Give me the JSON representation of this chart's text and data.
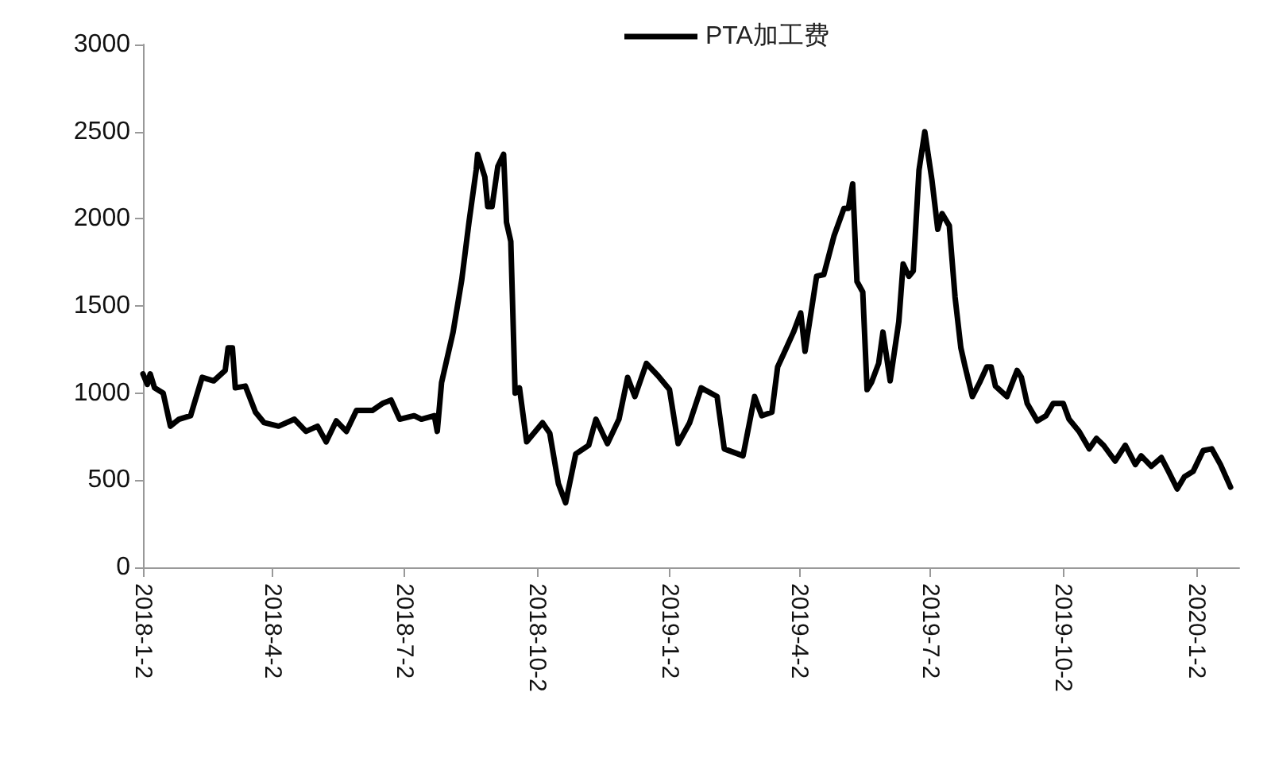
{
  "chart_data": {
    "type": "line",
    "legend": "top",
    "grid": false,
    "marker": "none",
    "line_style": "solid",
    "xlim": [
      "2018-01-02",
      "2020-02-01"
    ],
    "xticks": [
      {
        "value": "2018-01-02",
        "label": "2018-1-2"
      },
      {
        "value": "2018-04-02",
        "label": "2018-4-2"
      },
      {
        "value": "2018-07-02",
        "label": "2018-7-2"
      },
      {
        "value": "2018-10-02",
        "label": "2018-10-2"
      },
      {
        "value": "2019-01-02",
        "label": "2019-1-2"
      },
      {
        "value": "2019-04-02",
        "label": "2019-4-2"
      },
      {
        "value": "2019-07-02",
        "label": "2019-7-2"
      },
      {
        "value": "2019-10-02",
        "label": "2019-10-2"
      },
      {
        "value": "2020-01-02",
        "label": "2020-1-2"
      }
    ],
    "ylim": [
      0,
      3000
    ],
    "yticks": [
      0,
      500,
      1000,
      1500,
      2000,
      2500,
      3000
    ],
    "series": [
      {
        "name": "PTA加工费",
        "color": "#000000",
        "x": [
          "2018-01-02",
          "2018-01-05",
          "2018-01-07",
          "2018-01-10",
          "2018-01-16",
          "2018-01-21",
          "2018-01-27",
          "2018-02-04",
          "2018-02-12",
          "2018-02-20",
          "2018-02-28",
          "2018-03-02",
          "2018-03-05",
          "2018-03-07",
          "2018-03-14",
          "2018-03-21",
          "2018-03-27",
          "2018-04-06",
          "2018-04-17",
          "2018-04-25",
          "2018-05-03",
          "2018-05-09",
          "2018-05-16",
          "2018-05-23",
          "2018-05-30",
          "2018-06-10",
          "2018-06-17",
          "2018-06-23",
          "2018-06-29",
          "2018-07-09",
          "2018-07-14",
          "2018-07-23",
          "2018-07-25",
          "2018-07-28",
          "2018-08-05",
          "2018-08-11",
          "2018-08-16",
          "2018-08-21",
          "2018-08-22",
          "2018-08-27",
          "2018-08-29",
          "2018-09-01",
          "2018-09-05",
          "2018-09-09",
          "2018-09-11",
          "2018-09-14",
          "2018-09-17",
          "2018-09-20",
          "2018-09-25",
          "2018-10-06",
          "2018-10-11",
          "2018-10-17",
          "2018-10-22",
          "2018-10-29",
          "2018-11-07",
          "2018-11-12",
          "2018-11-20",
          "2018-11-28",
          "2018-12-04",
          "2018-12-09",
          "2018-12-17",
          "2018-12-25",
          "2019-01-02",
          "2019-01-08",
          "2019-01-16",
          "2019-01-24",
          "2019-02-04",
          "2019-02-09",
          "2019-02-22",
          "2019-03-02",
          "2019-03-07",
          "2019-03-14",
          "2019-03-18",
          "2019-03-23",
          "2019-03-29",
          "2019-04-03",
          "2019-04-06",
          "2019-04-14",
          "2019-04-19",
          "2019-04-26",
          "2019-05-03",
          "2019-05-06",
          "2019-05-09",
          "2019-05-12",
          "2019-05-16",
          "2019-05-19",
          "2019-05-22",
          "2019-05-27",
          "2019-05-30",
          "2019-06-04",
          "2019-06-10",
          "2019-06-13",
          "2019-06-17",
          "2019-06-20",
          "2019-06-24",
          "2019-06-28",
          "2019-07-03",
          "2019-07-07",
          "2019-07-10",
          "2019-07-15",
          "2019-07-19",
          "2019-07-23",
          "2019-07-26",
          "2019-07-31",
          "2019-08-05",
          "2019-08-10",
          "2019-08-13",
          "2019-08-16",
          "2019-08-24",
          "2019-08-31",
          "2019-09-03",
          "2019-09-07",
          "2019-09-14",
          "2019-09-20",
          "2019-09-25",
          "2019-10-02",
          "2019-10-06",
          "2019-10-13",
          "2019-10-20",
          "2019-10-25",
          "2019-10-30",
          "2019-11-07",
          "2019-11-14",
          "2019-11-21",
          "2019-11-25",
          "2019-12-02",
          "2019-12-09",
          "2019-12-14",
          "2019-12-20",
          "2019-12-25",
          "2019-12-31",
          "2020-01-07",
          "2020-01-13",
          "2020-01-19",
          "2020-01-26"
        ],
        "values": [
          1110,
          1050,
          1110,
          1030,
          1000,
          810,
          850,
          870,
          1090,
          1070,
          1130,
          1260,
          1260,
          1030,
          1040,
          890,
          830,
          810,
          850,
          780,
          810,
          720,
          840,
          780,
          900,
          900,
          940,
          960,
          850,
          870,
          850,
          870,
          780,
          1060,
          1350,
          1650,
          1980,
          2280,
          2370,
          2240,
          2070,
          2070,
          2300,
          2370,
          1980,
          1870,
          1000,
          1030,
          720,
          830,
          770,
          480,
          370,
          650,
          700,
          850,
          710,
          850,
          1090,
          980,
          1170,
          1100,
          1020,
          710,
          830,
          1030,
          980,
          680,
          640,
          980,
          870,
          890,
          1150,
          1240,
          1350,
          1460,
          1240,
          1670,
          1680,
          1900,
          2060,
          2060,
          2200,
          1640,
          1580,
          1020,
          1060,
          1170,
          1350,
          1070,
          1410,
          1740,
          1670,
          1700,
          2280,
          2500,
          2220,
          1940,
          2030,
          1960,
          1550,
          1260,
          1150,
          980,
          1060,
          1150,
          1150,
          1040,
          980,
          1130,
          1090,
          940,
          840,
          870,
          940,
          940,
          850,
          780,
          680,
          740,
          700,
          610,
          700,
          590,
          640,
          580,
          630,
          550,
          450,
          520,
          550,
          670,
          680,
          590,
          460
        ]
      }
    ]
  }
}
